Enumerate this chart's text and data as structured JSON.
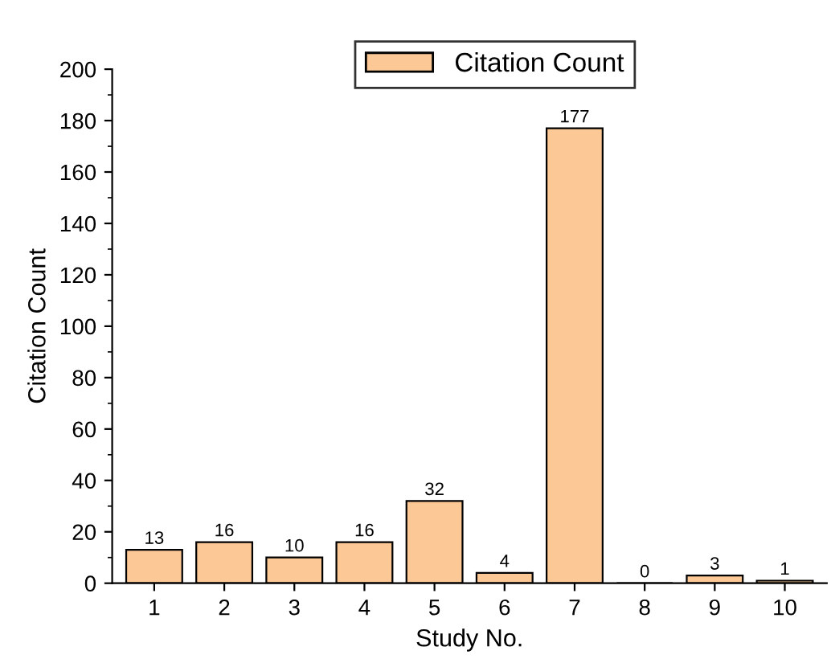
{
  "chart_data": {
    "type": "bar",
    "xlabel": "Study No.",
    "ylabel": "Citation Count",
    "categories": [
      "1",
      "2",
      "3",
      "4",
      "5",
      "6",
      "7",
      "8",
      "9",
      "10"
    ],
    "series": [
      {
        "name": "Citation Count",
        "color": "#fbc896",
        "values": [
          13,
          16,
          10,
          16,
          32,
          4,
          177,
          0,
          3,
          1
        ]
      }
    ],
    "ylim": [
      0,
      200
    ],
    "yticks": [
      0,
      20,
      40,
      60,
      80,
      100,
      120,
      140,
      160,
      180,
      200
    ],
    "data_labels": true,
    "legend": "top right",
    "grid": false
  }
}
